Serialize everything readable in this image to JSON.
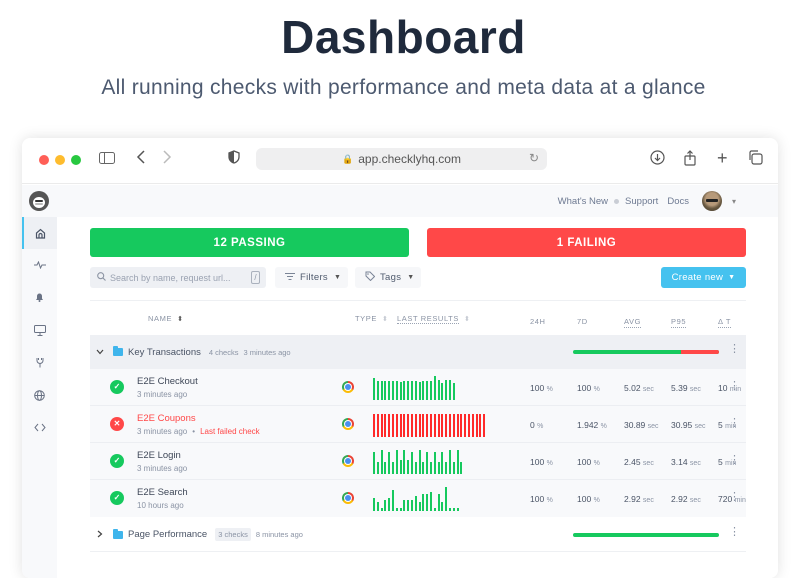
{
  "hero": {
    "title": "Dashboard",
    "subtitle": "All running checks with performance and meta data at a glance"
  },
  "browser": {
    "url": "app.checklyhq.com",
    "traffic_lights": [
      "#ff5f57",
      "#febc2e",
      "#28c840"
    ]
  },
  "topbar": {
    "links": [
      "What's New",
      "Support",
      "Docs"
    ]
  },
  "sidebar": {
    "items": [
      {
        "name": "home",
        "icon": "⌂",
        "active": true
      },
      {
        "name": "activity",
        "icon": "∿",
        "active": false
      },
      {
        "name": "alerts",
        "icon": "🔔",
        "active": false
      },
      {
        "name": "dashboards",
        "icon": "🖥",
        "active": false
      },
      {
        "name": "integrations",
        "icon": "⚲",
        "active": false
      },
      {
        "name": "locations",
        "icon": "⊕",
        "active": false
      },
      {
        "name": "api",
        "icon": "‹›",
        "active": false
      }
    ]
  },
  "summary": {
    "passing_label": "12 PASSING",
    "failing_label": "1 FAILING",
    "passing_color": "#16c95e",
    "failing_color": "#ff4848"
  },
  "toolbar": {
    "search_placeholder": "Search by name, request url...",
    "search_shortcut": "/",
    "filters_label": "Filters",
    "tags_label": "Tags",
    "create_label": "Create new",
    "create_color": "#45c2ef"
  },
  "table": {
    "headers": {
      "name": "NAME",
      "type": "TYPE",
      "last_results": "LAST RESULTS",
      "h24": "24H",
      "d7": "7D",
      "avg": "AVG",
      "p95": "P95",
      "delta_t": "Δ T"
    },
    "groups": [
      {
        "name": "Key Transactions",
        "count": "4 checks",
        "updated": "3 minutes ago",
        "expanded": true,
        "health_fail_pct": 17,
        "checks": [
          {
            "name": "E2E Checkout",
            "status": "passing",
            "time": "3 minutes ago",
            "note": "",
            "type": "browser",
            "bars": [
              22,
              19,
              19,
              19,
              19,
              19,
              19,
              18,
              19,
              19,
              19,
              19,
              18,
              19,
              19,
              19,
              24,
              20,
              17,
              20,
              20,
              17
            ],
            "bar_color": "#16c95e",
            "h24": "100",
            "h24_unit": "%",
            "d7": "100",
            "d7_unit": "%",
            "avg": "5.02",
            "avg_unit": "sec",
            "p95": "5.39",
            "p95_unit": "sec",
            "delta": "10",
            "delta_unit": "min"
          },
          {
            "name": "E2E Coupons",
            "status": "failing",
            "time": "3 minutes ago",
            "note": "Last failed check",
            "type": "browser",
            "bars": [
              23,
              23,
              23,
              23,
              23,
              23,
              23,
              23,
              23,
              23,
              23,
              23,
              23,
              23,
              23,
              23,
              23,
              23,
              23,
              23,
              23,
              23,
              23,
              23,
              23,
              23,
              23,
              23,
              23,
              23
            ],
            "bar_color": "#ff2a2a",
            "h24": "0",
            "h24_unit": "%",
            "d7": "1.942",
            "d7_unit": "%",
            "avg": "30.89",
            "avg_unit": "sec",
            "p95": "30.95",
            "p95_unit": "sec",
            "delta": "5",
            "delta_unit": "min"
          },
          {
            "name": "E2E Login",
            "status": "passing",
            "time": "3 minutes ago",
            "note": "",
            "type": "browser",
            "bars": [
              22,
              12,
              24,
              12,
              22,
              12,
              24,
              14,
              24,
              14,
              22,
              12,
              24,
              12,
              22,
              12,
              22,
              12,
              22,
              12,
              24,
              12,
              24,
              12
            ],
            "bar_color": "#16c95e",
            "h24": "100",
            "h24_unit": "%",
            "d7": "100",
            "d7_unit": "%",
            "avg": "2.45",
            "avg_unit": "sec",
            "p95": "3.14",
            "p95_unit": "sec",
            "delta": "5",
            "delta_unit": "min"
          },
          {
            "name": "E2E Search",
            "status": "passing",
            "time": "10 hours ago",
            "note": "",
            "type": "browser",
            "bars": [
              13,
              9,
              3,
              11,
              13,
              21,
              3,
              3,
              11,
              11,
              11,
              15,
              9,
              17,
              17,
              19,
              3,
              17,
              9,
              24,
              3,
              3,
              3
            ],
            "bar_color": "#16c95e",
            "h24": "100",
            "h24_unit": "%",
            "d7": "100",
            "d7_unit": "%",
            "avg": "2.92",
            "avg_unit": "sec",
            "p95": "2.92",
            "p95_unit": "sec",
            "delta": "720",
            "delta_unit": "min"
          }
        ]
      },
      {
        "name": "Page Performance",
        "count": "3 checks",
        "updated": "8 minutes ago",
        "expanded": false,
        "health_fail_pct": 0,
        "checks": []
      }
    ]
  }
}
